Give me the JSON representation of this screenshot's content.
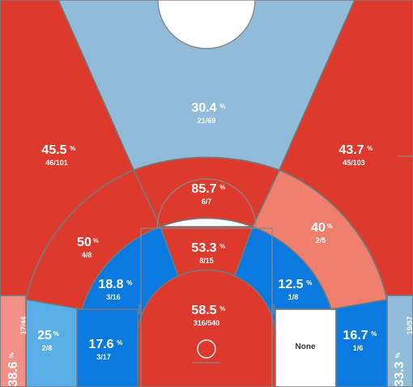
{
  "colors": {
    "hot": "#dd3a2d",
    "warm": "#f07f6e",
    "cold": "#0a79e0",
    "cool": "#5aaee8",
    "mild": "#91bcd9",
    "light_red": "#f39088",
    "none": "#ffffff",
    "text": "#ffffff",
    "none_text": "#333333"
  },
  "chart_data": {
    "type": "heatmap",
    "title": "",
    "zones": [
      {
        "id": "restricted-area",
        "pct": "58.5",
        "made": "316",
        "att": "540",
        "frac": "316/540",
        "color": "hot"
      },
      {
        "id": "paint-non-ra",
        "pct": "53.3",
        "made": "8",
        "att": "15",
        "frac": "8/15",
        "color": "hot"
      },
      {
        "id": "short-left-wing",
        "pct": "18.8",
        "made": "3",
        "att": "16",
        "frac": "3/16",
        "color": "cold"
      },
      {
        "id": "short-right-wing",
        "pct": "12.5",
        "made": "1",
        "att": "8",
        "frac": "1/8",
        "color": "cold"
      },
      {
        "id": "baseline-left",
        "pct": "17.6",
        "made": "3",
        "att": "17",
        "frac": "3/17",
        "color": "cold"
      },
      {
        "id": "baseline-right",
        "pct": "",
        "made": "0",
        "att": "0",
        "frac": "None",
        "color": "none"
      },
      {
        "id": "mid-top",
        "pct": "85.7",
        "made": "6",
        "att": "7",
        "frac": "6/7",
        "color": "hot"
      },
      {
        "id": "mid-left",
        "pct": "50",
        "made": "4",
        "att": "8",
        "frac": "4/8",
        "color": "hot"
      },
      {
        "id": "mid-right",
        "pct": "40",
        "made": "2",
        "att": "5",
        "frac": "2/5",
        "color": "warm"
      },
      {
        "id": "corner-mid-left",
        "pct": "25",
        "made": "2",
        "att": "8",
        "frac": "2/8",
        "color": "cool"
      },
      {
        "id": "corner-mid-right",
        "pct": "16.7",
        "made": "1",
        "att": "6",
        "frac": "1/6",
        "color": "cold"
      },
      {
        "id": "three-top",
        "pct": "30.4",
        "made": "21",
        "att": "69",
        "frac": "21/69",
        "color": "mild"
      },
      {
        "id": "three-left-wing",
        "pct": "45.5",
        "made": "46",
        "att": "101",
        "frac": "46/101",
        "color": "hot"
      },
      {
        "id": "three-right-wing",
        "pct": "43.7",
        "made": "45",
        "att": "103",
        "frac": "45/103",
        "color": "hot"
      },
      {
        "id": "three-left-corner",
        "pct": "38.6",
        "made": "17",
        "att": "44",
        "frac": "17/44",
        "color": "light_red"
      },
      {
        "id": "three-right-corner",
        "pct": "33.3",
        "made": "19",
        "att": "57",
        "frac": "19/57",
        "color": "mild"
      }
    ]
  }
}
